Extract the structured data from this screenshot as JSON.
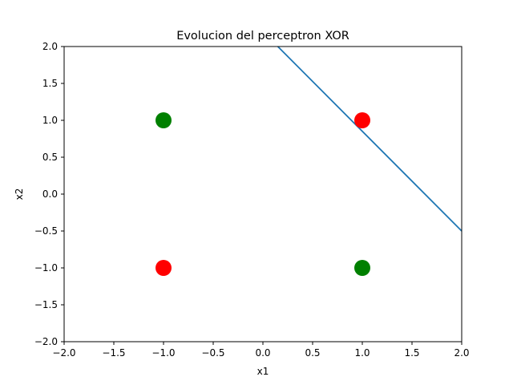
{
  "chart_data": {
    "type": "scatter",
    "title": "Evolucion del perceptron XOR",
    "xlabel": "x1",
    "ylabel": "x2",
    "xlim": [
      -2.0,
      2.0
    ],
    "ylim": [
      -2.0,
      2.0
    ],
    "xticks": [
      -2.0,
      -1.5,
      -1.0,
      -0.5,
      0.0,
      0.5,
      1.0,
      1.5,
      2.0
    ],
    "yticks": [
      -2.0,
      -1.5,
      -1.0,
      -0.5,
      0.0,
      0.5,
      1.0,
      1.5,
      2.0
    ],
    "xtick_labels": [
      "−2.0",
      "−1.5",
      "−1.0",
      "−0.5",
      "0.0",
      "0.5",
      "1.0",
      "1.5",
      "2.0"
    ],
    "ytick_labels": [
      "−2.0",
      "−1.5",
      "−1.0",
      "−0.5",
      "0.0",
      "0.5",
      "1.0",
      "1.5",
      "2.0"
    ],
    "grid": false,
    "points": [
      {
        "x": -1,
        "y": 1,
        "color": "#008000"
      },
      {
        "x": 1,
        "y": 1,
        "color": "#ff0000"
      },
      {
        "x": -1,
        "y": -1,
        "color": "#ff0000"
      },
      {
        "x": 1,
        "y": -1,
        "color": "#008000"
      }
    ],
    "decision_line": {
      "points": [
        [
          0.15,
          2.0
        ],
        [
          2.0,
          -0.5
        ]
      ],
      "color": "#1f77b4"
    }
  }
}
